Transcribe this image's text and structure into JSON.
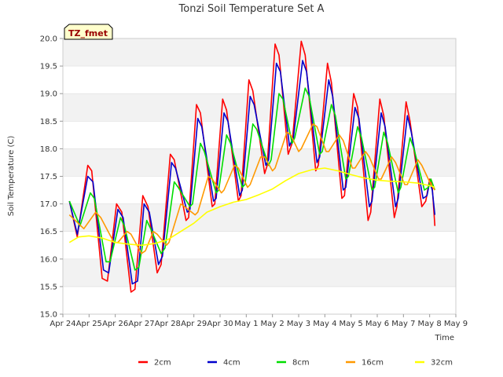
{
  "chart_data": {
    "type": "line",
    "title": "Tonzi Soil Temperature Set A",
    "xlabel": "Time",
    "ylabel": "Soil Temperature (C)",
    "badge": "TZ_fmet",
    "ylim": [
      15.0,
      20.0
    ],
    "xlim": [
      0,
      15
    ],
    "grid": "horizontal bands",
    "legend_position": "bottom",
    "y_ticks": [
      15.0,
      15.5,
      16.0,
      16.5,
      17.0,
      17.5,
      18.0,
      18.5,
      19.0,
      19.5,
      20.0
    ],
    "x_ticks": [
      {
        "v": 0,
        "label": "Apr 24"
      },
      {
        "v": 1,
        "label": "Apr 25"
      },
      {
        "v": 2,
        "label": "Apr 26"
      },
      {
        "v": 3,
        "label": "Apr 27"
      },
      {
        "v": 4,
        "label": "Apr 28"
      },
      {
        "v": 5,
        "label": "Apr 29"
      },
      {
        "v": 6,
        "label": "Apr 30"
      },
      {
        "v": 7,
        "label": "May 1"
      },
      {
        "v": 8,
        "label": "May 2"
      },
      {
        "v": 9,
        "label": "May 3"
      },
      {
        "v": 10,
        "label": "May 4"
      },
      {
        "v": 11,
        "label": "May 5"
      },
      {
        "v": 12,
        "label": "May 6"
      },
      {
        "v": 13,
        "label": "May 7"
      },
      {
        "v": 14,
        "label": "May 8"
      },
      {
        "v": 15,
        "label": "May 9"
      }
    ],
    "series": [
      {
        "name": "2cm",
        "color": "#ff0000",
        "points": [
          [
            0.25,
            17.05
          ],
          [
            0.55,
            16.4
          ],
          [
            0.95,
            17.7
          ],
          [
            1.1,
            17.6
          ],
          [
            1.5,
            15.65
          ],
          [
            1.7,
            15.6
          ],
          [
            2.05,
            17.0
          ],
          [
            2.25,
            16.85
          ],
          [
            2.6,
            15.4
          ],
          [
            2.75,
            15.45
          ],
          [
            3.05,
            17.15
          ],
          [
            3.25,
            16.95
          ],
          [
            3.6,
            15.75
          ],
          [
            3.75,
            15.9
          ],
          [
            4.1,
            17.9
          ],
          [
            4.25,
            17.8
          ],
          [
            4.7,
            16.7
          ],
          [
            4.8,
            16.75
          ],
          [
            5.1,
            18.8
          ],
          [
            5.25,
            18.65
          ],
          [
            5.7,
            16.95
          ],
          [
            5.8,
            17.0
          ],
          [
            6.1,
            18.9
          ],
          [
            6.25,
            18.7
          ],
          [
            6.7,
            17.05
          ],
          [
            6.8,
            17.15
          ],
          [
            7.1,
            19.25
          ],
          [
            7.25,
            19.05
          ],
          [
            7.7,
            17.55
          ],
          [
            7.8,
            17.7
          ],
          [
            8.1,
            19.9
          ],
          [
            8.25,
            19.7
          ],
          [
            8.6,
            17.9
          ],
          [
            8.75,
            18.1
          ],
          [
            9.1,
            19.95
          ],
          [
            9.25,
            19.7
          ],
          [
            9.65,
            17.6
          ],
          [
            9.75,
            17.7
          ],
          [
            10.1,
            19.55
          ],
          [
            10.25,
            19.2
          ],
          [
            10.65,
            17.1
          ],
          [
            10.75,
            17.15
          ],
          [
            11.1,
            19.0
          ],
          [
            11.25,
            18.75
          ],
          [
            11.65,
            16.7
          ],
          [
            11.75,
            16.85
          ],
          [
            12.1,
            18.9
          ],
          [
            12.25,
            18.6
          ],
          [
            12.65,
            16.75
          ],
          [
            12.75,
            16.95
          ],
          [
            13.1,
            18.85
          ],
          [
            13.25,
            18.5
          ],
          [
            13.7,
            16.95
          ],
          [
            13.85,
            17.05
          ],
          [
            14.0,
            17.45
          ],
          [
            14.1,
            17.3
          ],
          [
            14.2,
            16.6
          ]
        ]
      },
      {
        "name": "4cm",
        "color": "#0000cc",
        "points": [
          [
            0.25,
            17.05
          ],
          [
            0.55,
            16.45
          ],
          [
            0.95,
            17.5
          ],
          [
            1.15,
            17.4
          ],
          [
            1.55,
            15.8
          ],
          [
            1.75,
            15.75
          ],
          [
            2.1,
            16.9
          ],
          [
            2.3,
            16.75
          ],
          [
            2.65,
            15.55
          ],
          [
            2.85,
            15.6
          ],
          [
            3.1,
            17.0
          ],
          [
            3.3,
            16.85
          ],
          [
            3.65,
            15.9
          ],
          [
            3.8,
            16.05
          ],
          [
            4.15,
            17.75
          ],
          [
            4.3,
            17.65
          ],
          [
            4.75,
            16.85
          ],
          [
            4.85,
            16.9
          ],
          [
            5.15,
            18.55
          ],
          [
            5.3,
            18.4
          ],
          [
            5.75,
            17.05
          ],
          [
            5.85,
            17.1
          ],
          [
            6.15,
            18.65
          ],
          [
            6.3,
            18.5
          ],
          [
            6.75,
            17.15
          ],
          [
            6.85,
            17.25
          ],
          [
            7.15,
            18.95
          ],
          [
            7.3,
            18.8
          ],
          [
            7.75,
            17.7
          ],
          [
            7.85,
            17.8
          ],
          [
            8.15,
            19.55
          ],
          [
            8.3,
            19.4
          ],
          [
            8.65,
            18.05
          ],
          [
            8.8,
            18.2
          ],
          [
            9.15,
            19.6
          ],
          [
            9.3,
            19.4
          ],
          [
            9.7,
            17.75
          ],
          [
            9.8,
            17.85
          ],
          [
            10.15,
            19.25
          ],
          [
            10.3,
            18.95
          ],
          [
            10.7,
            17.25
          ],
          [
            10.8,
            17.3
          ],
          [
            11.15,
            18.75
          ],
          [
            11.3,
            18.55
          ],
          [
            11.7,
            16.95
          ],
          [
            11.8,
            17.05
          ],
          [
            12.15,
            18.65
          ],
          [
            12.3,
            18.4
          ],
          [
            12.7,
            16.95
          ],
          [
            12.8,
            17.1
          ],
          [
            13.15,
            18.6
          ],
          [
            13.3,
            18.3
          ],
          [
            13.75,
            17.1
          ],
          [
            13.9,
            17.15
          ],
          [
            14.0,
            17.4
          ],
          [
            14.1,
            17.25
          ],
          [
            14.2,
            16.8
          ]
        ]
      },
      {
        "name": "8cm",
        "color": "#00dd00",
        "points": [
          [
            0.25,
            17.05
          ],
          [
            0.65,
            16.6
          ],
          [
            1.05,
            17.2
          ],
          [
            1.2,
            17.1
          ],
          [
            1.65,
            15.95
          ],
          [
            1.8,
            15.95
          ],
          [
            2.2,
            16.75
          ],
          [
            2.35,
            16.6
          ],
          [
            2.75,
            15.8
          ],
          [
            2.9,
            15.85
          ],
          [
            3.2,
            16.7
          ],
          [
            3.35,
            16.55
          ],
          [
            3.75,
            16.1
          ],
          [
            3.9,
            16.2
          ],
          [
            4.25,
            17.4
          ],
          [
            4.4,
            17.3
          ],
          [
            4.85,
            16.95
          ],
          [
            4.95,
            17.0
          ],
          [
            5.25,
            18.1
          ],
          [
            5.4,
            17.95
          ],
          [
            5.85,
            17.2
          ],
          [
            5.95,
            17.25
          ],
          [
            6.25,
            18.25
          ],
          [
            6.4,
            18.1
          ],
          [
            6.85,
            17.3
          ],
          [
            6.95,
            17.35
          ],
          [
            7.25,
            18.45
          ],
          [
            7.4,
            18.35
          ],
          [
            7.85,
            17.7
          ],
          [
            7.95,
            17.8
          ],
          [
            8.25,
            19.0
          ],
          [
            8.4,
            18.9
          ],
          [
            8.75,
            18.1
          ],
          [
            8.85,
            18.2
          ],
          [
            9.25,
            19.1
          ],
          [
            9.4,
            18.95
          ],
          [
            9.8,
            17.9
          ],
          [
            9.9,
            17.95
          ],
          [
            10.25,
            18.8
          ],
          [
            10.4,
            18.6
          ],
          [
            10.8,
            17.45
          ],
          [
            10.9,
            17.5
          ],
          [
            11.25,
            18.4
          ],
          [
            11.4,
            18.2
          ],
          [
            11.8,
            17.25
          ],
          [
            11.9,
            17.3
          ],
          [
            12.25,
            18.3
          ],
          [
            12.4,
            18.1
          ],
          [
            12.8,
            17.2
          ],
          [
            12.9,
            17.3
          ],
          [
            13.25,
            18.2
          ],
          [
            13.4,
            18.0
          ],
          [
            13.8,
            17.25
          ],
          [
            13.95,
            17.3
          ],
          [
            14.05,
            17.45
          ],
          [
            14.2,
            17.25
          ]
        ]
      },
      {
        "name": "16cm",
        "color": "#ff9900",
        "points": [
          [
            0.25,
            16.8
          ],
          [
            0.8,
            16.55
          ],
          [
            1.25,
            16.85
          ],
          [
            1.45,
            16.75
          ],
          [
            1.95,
            16.3
          ],
          [
            2.1,
            16.3
          ],
          [
            2.45,
            16.5
          ],
          [
            2.6,
            16.45
          ],
          [
            3.0,
            16.1
          ],
          [
            3.15,
            16.15
          ],
          [
            3.45,
            16.5
          ],
          [
            3.6,
            16.45
          ],
          [
            3.95,
            16.25
          ],
          [
            4.05,
            16.3
          ],
          [
            4.5,
            17.0
          ],
          [
            4.65,
            16.95
          ],
          [
            5.05,
            16.8
          ],
          [
            5.15,
            16.85
          ],
          [
            5.55,
            17.5
          ],
          [
            5.7,
            17.45
          ],
          [
            6.05,
            17.2
          ],
          [
            6.15,
            17.25
          ],
          [
            6.55,
            17.7
          ],
          [
            6.7,
            17.65
          ],
          [
            7.05,
            17.3
          ],
          [
            7.15,
            17.35
          ],
          [
            7.55,
            17.85
          ],
          [
            7.7,
            17.85
          ],
          [
            8.0,
            17.6
          ],
          [
            8.1,
            17.65
          ],
          [
            8.55,
            18.3
          ],
          [
            8.7,
            18.25
          ],
          [
            9.0,
            17.95
          ],
          [
            9.1,
            18.0
          ],
          [
            9.55,
            18.45
          ],
          [
            9.7,
            18.4
          ],
          [
            10.05,
            17.95
          ],
          [
            10.15,
            17.95
          ],
          [
            10.55,
            18.25
          ],
          [
            10.7,
            18.15
          ],
          [
            11.05,
            17.65
          ],
          [
            11.15,
            17.65
          ],
          [
            11.55,
            17.95
          ],
          [
            11.7,
            17.85
          ],
          [
            12.05,
            17.45
          ],
          [
            12.15,
            17.45
          ],
          [
            12.55,
            17.85
          ],
          [
            12.7,
            17.75
          ],
          [
            13.05,
            17.35
          ],
          [
            13.15,
            17.35
          ],
          [
            13.55,
            17.8
          ],
          [
            13.7,
            17.7
          ],
          [
            14.05,
            17.35
          ],
          [
            14.2,
            17.25
          ]
        ]
      },
      {
        "name": "32cm",
        "color": "#ffff00",
        "points": [
          [
            0.25,
            16.3
          ],
          [
            0.6,
            16.4
          ],
          [
            1.0,
            16.42
          ],
          [
            1.5,
            16.38
          ],
          [
            2.0,
            16.3
          ],
          [
            2.5,
            16.27
          ],
          [
            3.0,
            16.25
          ],
          [
            3.5,
            16.28
          ],
          [
            4.0,
            16.35
          ],
          [
            4.5,
            16.5
          ],
          [
            5.0,
            16.65
          ],
          [
            5.5,
            16.85
          ],
          [
            6.0,
            16.95
          ],
          [
            6.5,
            17.03
          ],
          [
            7.0,
            17.08
          ],
          [
            7.5,
            17.17
          ],
          [
            8.0,
            17.27
          ],
          [
            8.5,
            17.42
          ],
          [
            9.0,
            17.55
          ],
          [
            9.5,
            17.62
          ],
          [
            10.0,
            17.65
          ],
          [
            10.5,
            17.6
          ],
          [
            11.0,
            17.53
          ],
          [
            11.5,
            17.47
          ],
          [
            12.0,
            17.43
          ],
          [
            12.5,
            17.41
          ],
          [
            13.0,
            17.4
          ],
          [
            13.5,
            17.38
          ],
          [
            14.0,
            17.33
          ],
          [
            14.2,
            17.3
          ]
        ]
      }
    ]
  }
}
